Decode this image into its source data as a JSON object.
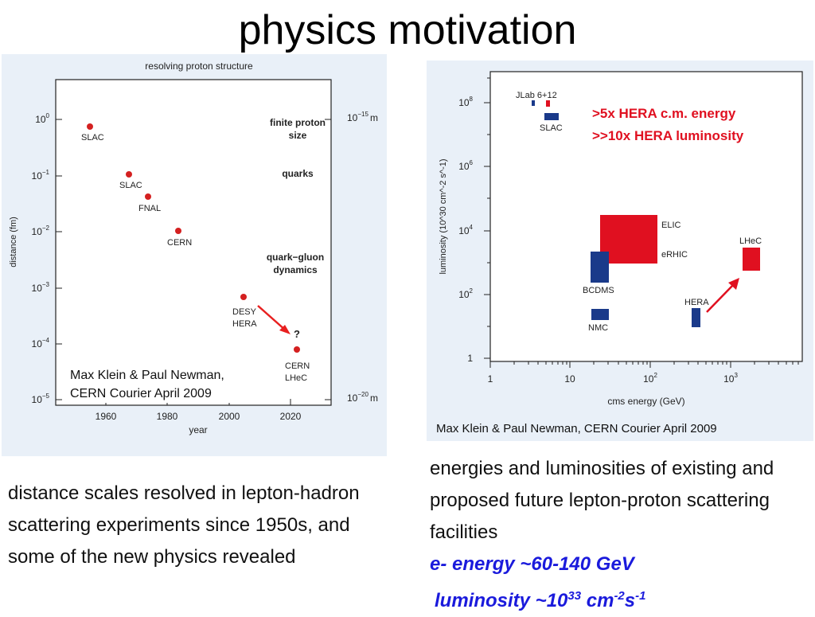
{
  "slide": {
    "title": "physics motivation"
  },
  "left_chart": {
    "title": "resolving proton structure",
    "xlabel": "year",
    "ylabel": "distance (fm)",
    "x_ticks": [
      "1960",
      "1980",
      "2000",
      "2020"
    ],
    "y_ticks": [
      {
        "base": "10",
        "exp": "0"
      },
      {
        "base": "10",
        "exp": "−1"
      },
      {
        "base": "10",
        "exp": "−2"
      },
      {
        "base": "10",
        "exp": "−3"
      },
      {
        "base": "10",
        "exp": "−4"
      },
      {
        "base": "10",
        "exp": "−5"
      }
    ],
    "right_axis_top": {
      "base": "10",
      "exp": "−15",
      "unit": "m"
    },
    "right_axis_bottom": {
      "base": "10",
      "exp": "−20",
      "unit": "m"
    },
    "annotations": {
      "finite_line1": "finite proton",
      "finite_line2": "size",
      "quarks": "quarks",
      "qg_line1": "quark−gluon",
      "qg_line2": "dynamics",
      "question": "?"
    },
    "point_labels": {
      "slac1": "SLAC",
      "slac2": "SLAC",
      "fnal": "FNAL",
      "cern": "CERN",
      "desy_line1": "DESY",
      "desy_line2": "HERA",
      "lhec_line1": "CERN",
      "lhec_line2": "LHeC"
    },
    "credit_line1": "Max Klein & Paul Newman,",
    "credit_line2": "CERN Courier April 2009",
    "point_color": "#d42020",
    "arrow_color": "#e82020"
  },
  "right_chart": {
    "xlabel": "cms energy (GeV)",
    "ylabel": "luminosity (10^30 cm^-2 s^-1)",
    "x_ticks": [
      {
        "base": "1",
        "exp": ""
      },
      {
        "base": "10",
        "exp": ""
      },
      {
        "base": "10",
        "exp": "2"
      },
      {
        "base": "10",
        "exp": "3"
      }
    ],
    "y_ticks": [
      {
        "base": "1",
        "exp": ""
      },
      {
        "base": "10",
        "exp": "2"
      },
      {
        "base": "10",
        "exp": "4"
      },
      {
        "base": "10",
        "exp": "6"
      },
      {
        "base": "10",
        "exp": "8"
      }
    ],
    "facility_labels": {
      "jlab": "JLab 6+12",
      "slac": "SLAC",
      "elic": "ELIC",
      "erhic": "eRHIC",
      "lhec": "LHeC",
      "bcdms": "BCDMS",
      "hera": "HERA",
      "nmc": "NMC"
    },
    "highlight_line1": ">5x HERA c.m. energy",
    "highlight_line2": ">>10x HERA luminosity",
    "credit": "Max Klein & Paul Newman, CERN Courier April 2009",
    "red_color": "#e01020",
    "blue_color": "#1a3a8a"
  },
  "captions": {
    "left": "distance scales resolved in lepton-hadron scattering experiments since 1950s, and some of the new physics revealed",
    "right": "energies and luminosities of existing and proposed future lepton-proton scattering facilities",
    "energy": "e- energy ~60-140 GeV",
    "lumi_prefix": "luminosity ~10",
    "lumi_exp1": "33",
    "lumi_unit1": " cm",
    "lumi_exp2": "-2",
    "lumi_unit2": "s",
    "lumi_exp3": "-1"
  }
}
